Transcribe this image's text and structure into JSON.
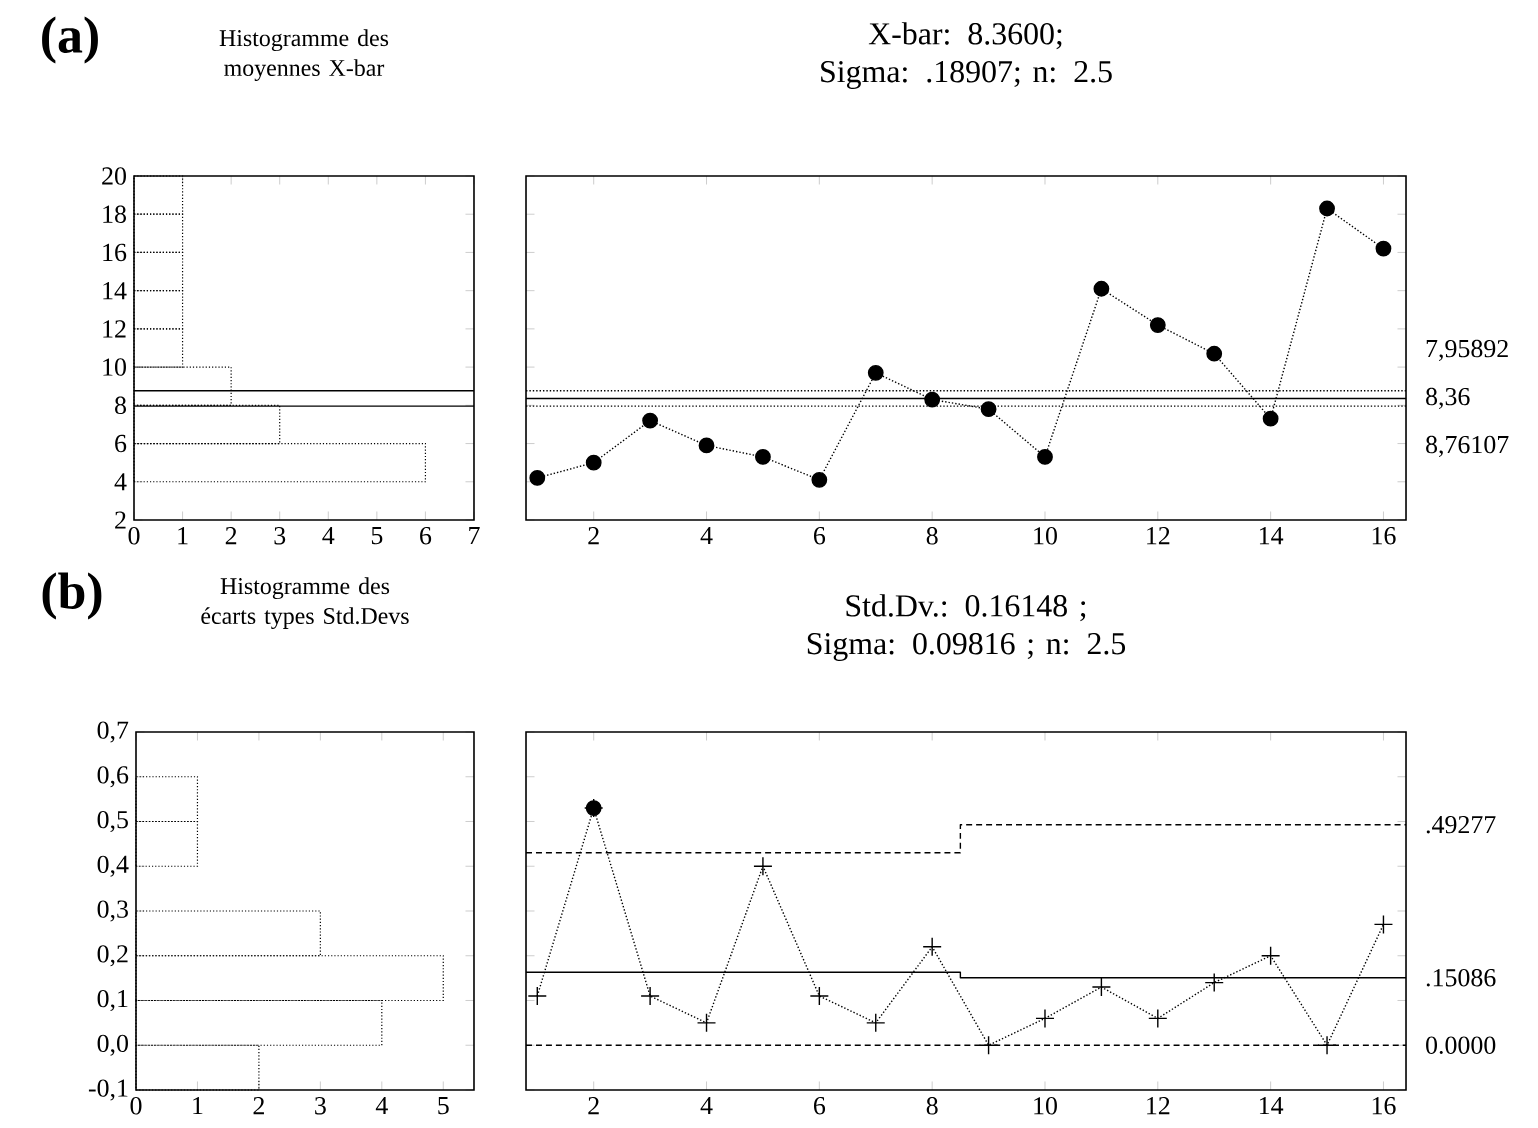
{
  "chart_data": [
    {
      "type": "histogram",
      "orientation": "horizontal",
      "title": "Histogramme des moyennes X-bar",
      "annotations": [
        "(a)"
      ],
      "bins": [
        2,
        4,
        6,
        8,
        10,
        12,
        14,
        16,
        18,
        20
      ],
      "values": [
        0,
        6,
        3,
        2,
        1,
        1,
        1,
        1,
        1
      ],
      "color": "#000000",
      "line_style": "dotted",
      "xlim": [
        0,
        7
      ],
      "xticks": [
        0,
        1,
        2,
        3,
        4,
        5,
        6,
        7
      ],
      "ylim": [
        2,
        20
      ],
      "yticks": [
        2,
        4,
        6,
        8,
        10,
        12,
        14,
        16,
        18,
        20
      ],
      "ref_lines": [
        {
          "axis": "y",
          "value": 8.76107,
          "color": "#000000",
          "line_style": "solid"
        },
        {
          "axis": "y",
          "value": 7.95892,
          "color": "#000000",
          "line_style": "solid"
        }
      ]
    },
    {
      "type": "line",
      "title": "X-bar: 8.3600;",
      "subtitle": "Sigma: .18907; n: 2.5",
      "x": [
        1,
        2,
        3,
        4,
        5,
        6,
        7,
        8,
        9,
        10,
        11,
        12,
        13,
        14,
        15,
        16
      ],
      "series": [
        {
          "color": "#000000",
          "values": [
            4.2,
            5.0,
            7.2,
            5.9,
            5.3,
            4.1,
            9.7,
            8.3,
            7.8,
            5.3,
            14.1,
            12.2,
            10.7,
            7.3,
            18.3,
            16.2
          ]
        }
      ],
      "marker": "circle",
      "line_style": "dotted",
      "xlim": [
        0.8,
        16.4
      ],
      "xticks": [
        2,
        4,
        6,
        8,
        10,
        12,
        14,
        16
      ],
      "ylim": [
        2,
        20
      ],
      "yticks": [
        2,
        4,
        6,
        8,
        10,
        12,
        14,
        16,
        18,
        20
      ],
      "tick_labels": "x",
      "ref_lines": [
        {
          "axis": "y",
          "value": 7.95892,
          "label": "7,95892",
          "color": "#000000",
          "line_style": "dotted"
        },
        {
          "axis": "y",
          "value": 8.36,
          "label": "8,36",
          "color": "#000000",
          "line_style": "solid"
        },
        {
          "axis": "y",
          "value": 8.76107,
          "label": "8,76107",
          "color": "#000000",
          "line_style": "dotted"
        }
      ]
    },
    {
      "type": "histogram",
      "orientation": "horizontal",
      "title": "Histogramme des écarts types Std.Devs",
      "annotations": [
        "(b)"
      ],
      "bins": [
        -0.1,
        0.0,
        0.1,
        0.2,
        0.3,
        0.4,
        0.5,
        0.6,
        0.7
      ],
      "values": [
        2,
        4,
        5,
        3,
        0,
        1,
        1,
        0
      ],
      "color": "#000000",
      "line_style": "dotted",
      "xlim": [
        0,
        5.5
      ],
      "xticks": [
        0,
        1,
        2,
        3,
        4,
        5
      ],
      "ylim": [
        -0.1,
        0.7
      ],
      "yticks": [
        {
          "value": -0.1,
          "label": "-0,1"
        },
        {
          "value": 0.0,
          "label": "0,0"
        },
        {
          "value": 0.1,
          "label": "0,1"
        },
        {
          "value": 0.2,
          "label": "0,2"
        },
        {
          "value": 0.3,
          "label": "0,3"
        },
        {
          "value": 0.4,
          "label": "0,4"
        },
        {
          "value": 0.5,
          "label": "0,5"
        },
        {
          "value": 0.6,
          "label": "0,6"
        },
        {
          "value": 0.7,
          "label": "0,7"
        }
      ]
    },
    {
      "type": "line",
      "title": "Std.Dv.: 0.16148 ;",
      "subtitle": "Sigma: 0.09816 ; n: 2.5",
      "x": [
        1,
        2,
        3,
        4,
        5,
        6,
        7,
        8,
        9,
        10,
        11,
        12,
        13,
        14,
        15,
        16
      ],
      "series": [
        {
          "color": "#000000",
          "marker": "cross",
          "values": [
            0.11,
            0.53,
            0.11,
            0.05,
            0.4,
            0.11,
            0.05,
            0.22,
            0.0,
            0.06,
            0.13,
            0.06,
            0.14,
            0.2,
            0.0,
            0.27
          ]
        },
        {
          "type": "scatter",
          "color": "#000000",
          "marker": "circle",
          "x": [
            2
          ],
          "values": [
            0.53
          ]
        },
        {
          "name": ".49277",
          "color": "#000000",
          "marker": "none",
          "line_style": "dashed",
          "x": [
            0.8,
            8.5,
            8.5,
            16.4
          ],
          "values": [
            0.43,
            0.43,
            0.49277,
            0.49277
          ]
        },
        {
          "name": ".15086",
          "color": "#000000",
          "marker": "none",
          "line_style": "solid",
          "x": [
            0.8,
            8.5,
            8.5,
            16.4
          ],
          "values": [
            0.163,
            0.163,
            0.15086,
            0.15086
          ]
        }
      ],
      "line_style": "dotted",
      "xlim": [
        0.8,
        16.4
      ],
      "xticks": [
        2,
        4,
        6,
        8,
        10,
        12,
        14,
        16
      ],
      "ylim": [
        -0.1,
        0.7
      ],
      "tick_labels": "x",
      "yticks": [
        -0.1,
        0.0,
        0.1,
        0.2,
        0.3,
        0.4,
        0.5,
        0.6,
        0.7
      ],
      "ref_lines": [
        {
          "axis": "y",
          "value": 0.0,
          "label": "0.0000",
          "color": "#000000",
          "line_style": "dashed"
        }
      ]
    }
  ]
}
